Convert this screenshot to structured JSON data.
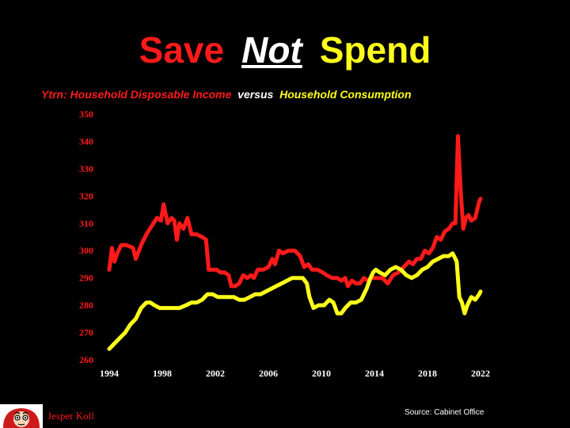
{
  "header": {
    "title_part1": "Save",
    "title_part2": "Not",
    "title_part3": "Spend",
    "subtitle_part1": "Ytrn:  Household Disposable Income",
    "subtitle_part2": "versus",
    "subtitle_part3": "Household Consumption"
  },
  "footer": {
    "source": "Source: Cabinet Office",
    "author": "Jesper Koll"
  },
  "colors": {
    "background": "#000000",
    "income": "#ff1a1a",
    "consumption": "#ffff1a",
    "text": "#ffffff"
  },
  "chart_data": {
    "type": "line",
    "ylim": [
      260,
      350
    ],
    "yticks": [
      260,
      270,
      280,
      290,
      300,
      310,
      320,
      330,
      340,
      350
    ],
    "xlim": [
      1994,
      2022
    ],
    "xticks": [
      1994,
      1998,
      2002,
      2006,
      2010,
      2014,
      2018,
      2022
    ],
    "grid": false,
    "series": [
      {
        "name": "Household Disposable Income",
        "color": "#ff1a1a",
        "points": [
          [
            1994.0,
            293
          ],
          [
            1994.2,
            301
          ],
          [
            1994.4,
            296
          ],
          [
            1994.6,
            299
          ],
          [
            1994.9,
            302
          ],
          [
            1995.3,
            302
          ],
          [
            1995.8,
            301
          ],
          [
            1996.0,
            297
          ],
          [
            1996.4,
            302
          ],
          [
            1996.8,
            306
          ],
          [
            1997.2,
            309
          ],
          [
            1997.6,
            312
          ],
          [
            1997.9,
            311
          ],
          [
            1998.1,
            317
          ],
          [
            1998.4,
            310
          ],
          [
            1998.7,
            312
          ],
          [
            1998.9,
            311
          ],
          [
            1999.1,
            304
          ],
          [
            1999.3,
            310
          ],
          [
            1999.6,
            308
          ],
          [
            1999.9,
            312
          ],
          [
            2000.2,
            306
          ],
          [
            2000.6,
            306
          ],
          [
            2001.0,
            305
          ],
          [
            2001.3,
            304
          ],
          [
            2001.5,
            293
          ],
          [
            2001.8,
            293
          ],
          [
            2002.1,
            293
          ],
          [
            2002.4,
            292
          ],
          [
            2002.7,
            292
          ],
          [
            2003.0,
            291
          ],
          [
            2003.2,
            287
          ],
          [
            2003.5,
            287
          ],
          [
            2003.8,
            288
          ],
          [
            2004.1,
            291
          ],
          [
            2004.4,
            290
          ],
          [
            2004.7,
            291
          ],
          [
            2004.9,
            290
          ],
          [
            2005.2,
            293
          ],
          [
            2005.6,
            293
          ],
          [
            2006.0,
            294
          ],
          [
            2006.3,
            297
          ],
          [
            2006.5,
            295
          ],
          [
            2006.8,
            300
          ],
          [
            2007.1,
            299
          ],
          [
            2007.5,
            300
          ],
          [
            2008.0,
            300
          ],
          [
            2008.4,
            298
          ],
          [
            2008.7,
            294
          ],
          [
            2009.0,
            295
          ],
          [
            2009.3,
            293
          ],
          [
            2009.7,
            293
          ],
          [
            2010.1,
            292
          ],
          [
            2010.4,
            291
          ],
          [
            2010.8,
            290
          ],
          [
            2011.2,
            290
          ],
          [
            2011.5,
            289
          ],
          [
            2011.8,
            290
          ],
          [
            2012.0,
            287
          ],
          [
            2012.3,
            289
          ],
          [
            2012.6,
            288
          ],
          [
            2012.9,
            288
          ],
          [
            2013.2,
            290
          ],
          [
            2013.5,
            289
          ],
          [
            2013.8,
            290
          ],
          [
            2014.2,
            290
          ],
          [
            2014.6,
            290
          ],
          [
            2015.0,
            288
          ],
          [
            2015.4,
            291
          ],
          [
            2015.8,
            292
          ],
          [
            2016.2,
            294
          ],
          [
            2016.6,
            296
          ],
          [
            2016.9,
            295
          ],
          [
            2017.2,
            297
          ],
          [
            2017.5,
            297
          ],
          [
            2017.8,
            300
          ],
          [
            2018.1,
            299
          ],
          [
            2018.4,
            301
          ],
          [
            2018.7,
            305
          ],
          [
            2019.0,
            304
          ],
          [
            2019.3,
            307
          ],
          [
            2019.6,
            308
          ],
          [
            2019.9,
            310
          ],
          [
            2020.1,
            310
          ],
          [
            2020.3,
            342
          ],
          [
            2020.5,
            322
          ],
          [
            2020.7,
            308
          ],
          [
            2020.9,
            312
          ],
          [
            2021.1,
            313
          ],
          [
            2021.3,
            311
          ],
          [
            2021.6,
            312
          ],
          [
            2021.9,
            318
          ],
          [
            2022.0,
            319
          ]
        ]
      },
      {
        "name": "Household Consumption",
        "color": "#ffff1a",
        "points": [
          [
            1994.0,
            264
          ],
          [
            1994.4,
            266
          ],
          [
            1994.8,
            268
          ],
          [
            1995.2,
            270
          ],
          [
            1995.6,
            273
          ],
          [
            1996.0,
            275
          ],
          [
            1996.4,
            279
          ],
          [
            1996.8,
            281
          ],
          [
            1997.1,
            281
          ],
          [
            1997.4,
            280
          ],
          [
            1997.8,
            279
          ],
          [
            1998.2,
            279
          ],
          [
            1998.8,
            279
          ],
          [
            1999.3,
            279
          ],
          [
            1999.8,
            280
          ],
          [
            2000.2,
            281
          ],
          [
            2000.6,
            281
          ],
          [
            2001.0,
            282
          ],
          [
            2001.4,
            284
          ],
          [
            2001.8,
            284
          ],
          [
            2002.2,
            283
          ],
          [
            2002.6,
            283
          ],
          [
            2003.0,
            283
          ],
          [
            2003.4,
            283
          ],
          [
            2003.8,
            282
          ],
          [
            2004.2,
            282
          ],
          [
            2004.6,
            283
          ],
          [
            2005.0,
            284
          ],
          [
            2005.4,
            284
          ],
          [
            2005.8,
            285
          ],
          [
            2006.2,
            286
          ],
          [
            2006.6,
            287
          ],
          [
            2007.0,
            288
          ],
          [
            2007.4,
            289
          ],
          [
            2007.8,
            290
          ],
          [
            2008.2,
            290
          ],
          [
            2008.6,
            290
          ],
          [
            2008.9,
            288
          ],
          [
            2009.1,
            283
          ],
          [
            2009.4,
            279
          ],
          [
            2009.8,
            280
          ],
          [
            2010.2,
            280
          ],
          [
            2010.6,
            282
          ],
          [
            2010.9,
            281
          ],
          [
            2011.2,
            277
          ],
          [
            2011.5,
            277
          ],
          [
            2011.8,
            279
          ],
          [
            2012.2,
            281
          ],
          [
            2012.6,
            281
          ],
          [
            2013.0,
            282
          ],
          [
            2013.4,
            286
          ],
          [
            2013.7,
            290
          ],
          [
            2013.9,
            292
          ],
          [
            2014.1,
            293
          ],
          [
            2014.4,
            292
          ],
          [
            2014.8,
            291
          ],
          [
            2015.2,
            293
          ],
          [
            2015.6,
            294
          ],
          [
            2016.0,
            293
          ],
          [
            2016.4,
            291
          ],
          [
            2016.8,
            290
          ],
          [
            2017.2,
            291
          ],
          [
            2017.6,
            293
          ],
          [
            2018.0,
            294
          ],
          [
            2018.4,
            296
          ],
          [
            2018.8,
            297
          ],
          [
            2019.2,
            298
          ],
          [
            2019.6,
            298
          ],
          [
            2019.9,
            299
          ],
          [
            2020.2,
            296
          ],
          [
            2020.4,
            283
          ],
          [
            2020.6,
            281
          ],
          [
            2020.8,
            277
          ],
          [
            2021.0,
            280
          ],
          [
            2021.3,
            283
          ],
          [
            2021.6,
            282
          ],
          [
            2021.9,
            284
          ],
          [
            2022.0,
            285
          ]
        ]
      }
    ]
  }
}
